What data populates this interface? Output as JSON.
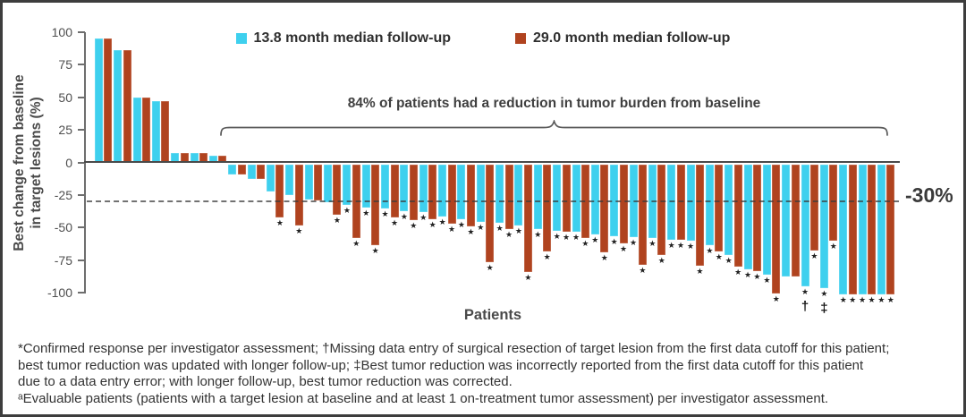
{
  "figure": {
    "legend": {
      "series1_label": "13.8 month median follow-up",
      "series2_label": "29.0 month median follow-up"
    },
    "y_axis": {
      "title_line1": "Best change from baseline",
      "title_line2": "in target lesions (%)"
    },
    "x_axis": {
      "label": "Patients"
    },
    "annotation": "84% of patients had a reduction in tumor burden from baseline",
    "threshold_label": "-30%",
    "footnotes": [
      "*Confirmed response per investigator assessment; †Missing data entry of surgical resection of target lesion from the first data cutoff for this patient;",
      "best tumor reduction was updated with longer follow-up; ‡Best tumor reduction was incorrectly reported from the first data cutoff for this patient",
      "due to a data entry error; with longer follow-up, best tumor reduction was corrected.",
      "ᵃEvaluable patients (patients with a target lesion at baseline and at least 1 on-treatment tumor assessment) per investigator assessment."
    ]
  },
  "chart_data": {
    "type": "bar",
    "title": "",
    "xlabel": "Patients",
    "ylabel": "Best change from baseline in target lesions (%)",
    "ylim": [
      -100,
      100
    ],
    "yticks": [
      100,
      75,
      50,
      25,
      0,
      -25,
      -50,
      -75,
      -100
    ],
    "reference_line": -30,
    "grid": false,
    "legend_position": "top-center",
    "axis_color": "#6e6e6e",
    "series": [
      {
        "name": "13.8 month median follow-up",
        "color": "#3ed0ee",
        "values": [
          95,
          86,
          50,
          47,
          7,
          7,
          5,
          -8,
          -11,
          -21,
          -24,
          -27,
          -29,
          -31,
          -33,
          -34,
          -36,
          -37,
          -40,
          -42,
          -44,
          -45,
          -47,
          -50,
          -51,
          -52,
          -54,
          -55,
          -56,
          -57,
          -58,
          -59,
          -62,
          -70,
          -81,
          -85,
          -86,
          -94,
          -95,
          -100,
          -100,
          -100
        ]
      },
      {
        "name": "29.0 month median follow-up",
        "color": "#b0431f",
        "values": [
          95,
          86,
          50,
          47,
          7,
          7,
          5,
          -8,
          -11,
          -41,
          -47,
          -28,
          -39,
          -57,
          -62,
          -41,
          -43,
          -42,
          -46,
          -48,
          -75,
          -50,
          -83,
          -67,
          -52,
          -57,
          -68,
          -61,
          -77,
          -70,
          -58,
          -78,
          -67,
          -79,
          -82,
          -99,
          -86,
          -66,
          -59,
          -100,
          -100,
          -100
        ]
      }
    ],
    "confirmed_response_stars_series1_patients": [
      14,
      15,
      16,
      17,
      18,
      19,
      20,
      21,
      22,
      23,
      24,
      25,
      26,
      27,
      28,
      29,
      30,
      31,
      32,
      33,
      34,
      35,
      36,
      38,
      39,
      40,
      41,
      42
    ],
    "confirmed_response_stars_series2_patients": [
      10,
      11,
      13,
      14,
      15,
      16,
      17,
      18,
      19,
      20,
      21,
      22,
      23,
      24,
      25,
      26,
      27,
      28,
      29,
      30,
      31,
      32,
      33,
      34,
      35,
      36,
      38,
      39,
      40,
      41,
      42
    ],
    "special_symbols": [
      {
        "patient": 38,
        "symbol": "†"
      },
      {
        "patient": 39,
        "symbol": "‡"
      }
    ]
  }
}
